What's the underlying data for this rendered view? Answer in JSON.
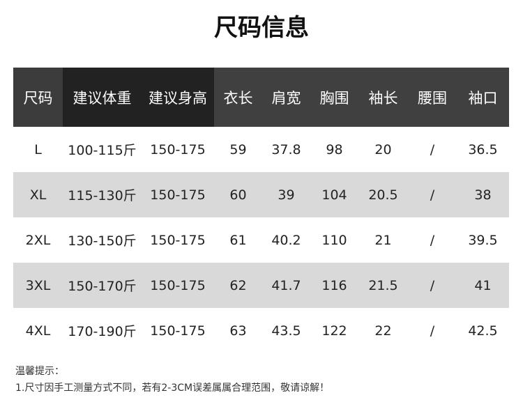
{
  "title": "尺码信息",
  "headers": [
    "尺码",
    "建议体重",
    "建议身高",
    "衣长",
    "肩宽",
    "胸围",
    "袖长",
    "腰围",
    "袖口"
  ],
  "rows": [
    [
      "L",
      "100-115斤",
      "150-175",
      "59",
      "37.8",
      "98",
      "20",
      "/",
      "36.5"
    ],
    [
      "XL",
      "115-130斤",
      "150-175",
      "60",
      "39",
      "104",
      "20.5",
      "/",
      "38"
    ],
    [
      "2XL",
      "130-150斤",
      "150-175",
      "61",
      "40.2",
      "110",
      "21",
      "/",
      "39.5"
    ],
    [
      "3XL",
      "150-170斤",
      "150-175",
      "62",
      "41.7",
      "116",
      "21.5",
      "/",
      "41"
    ],
    [
      "4XL",
      "170-190斤",
      "150-175",
      "63",
      "43.5",
      "122",
      "22",
      "/",
      "42.5"
    ]
  ],
  "notes": {
    "heading": "温馨提示：",
    "line1": "1.尺寸因手工测量方式不同，若有2-3CM误差属属合理范围，敬请谅解！"
  }
}
